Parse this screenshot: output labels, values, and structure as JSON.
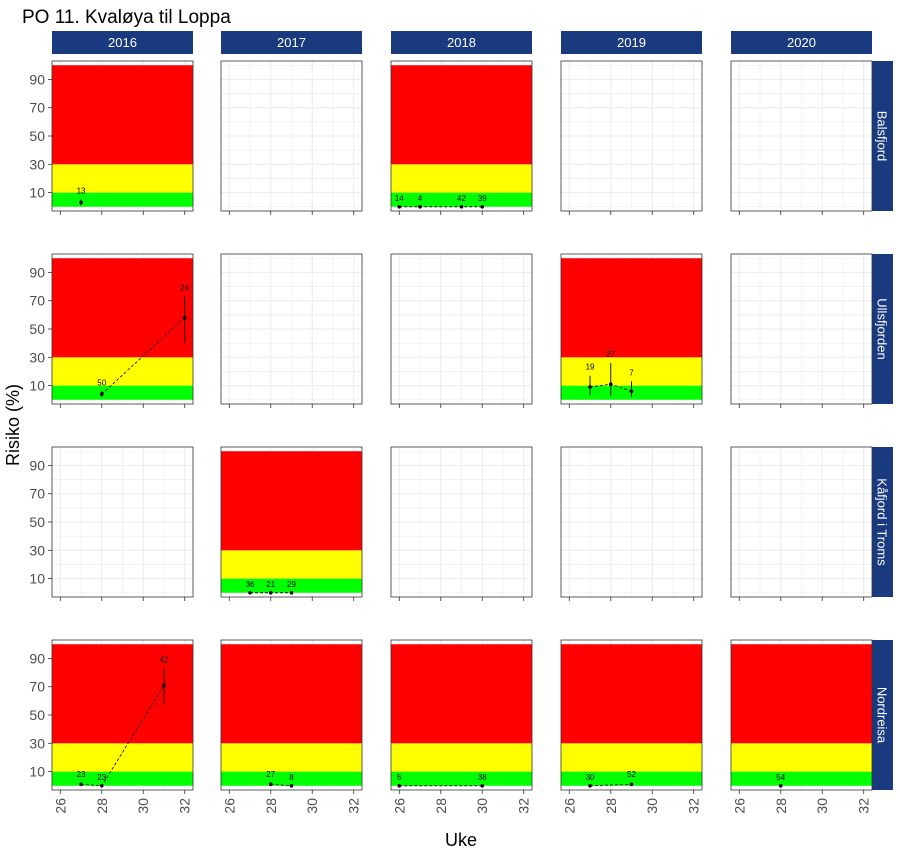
{
  "chart_data": {
    "type": "faceted-risk-line",
    "title": "PO 11. Kvaløya til Loppa",
    "xlabel": "Uke",
    "ylabel": "Risiko (%)",
    "years": [
      "2016",
      "2017",
      "2018",
      "2019",
      "2020"
    ],
    "locations": [
      "Balsfjord",
      "Ullsfjorden",
      "Kåfjord i Troms",
      "Nordreisa"
    ],
    "xlim": [
      25.6,
      32.4
    ],
    "ylim": [
      -3,
      103
    ],
    "x_ticks": [
      26,
      28,
      30,
      32
    ],
    "y_ticks": [
      10,
      30,
      50,
      70,
      90
    ],
    "risk_bands": [
      {
        "name": "green",
        "from": 0,
        "to": 10,
        "color": "#00ff00"
      },
      {
        "name": "yellow",
        "from": 10,
        "to": 30,
        "color": "#ffff00"
      },
      {
        "name": "red",
        "from": 30,
        "to": 100,
        "color": "#ff0000"
      }
    ],
    "colors": {
      "strip": "#1a3a7f",
      "strip_text": "#ffffff",
      "grid": "#ebebeb",
      "axis_text": "#4d4d4d"
    },
    "panels": [
      {
        "year": "2016",
        "location": "Balsfjord",
        "bands": true,
        "points": [
          {
            "week": 27,
            "risk": 3,
            "lo": 1,
            "hi": 5,
            "n": "13"
          }
        ]
      },
      {
        "year": "2018",
        "location": "Balsfjord",
        "bands": true,
        "points": [
          {
            "week": 26,
            "risk": 0,
            "lo": 0,
            "hi": 0,
            "n": "14"
          },
          {
            "week": 27,
            "risk": 0,
            "lo": 0,
            "hi": 0,
            "n": "4"
          },
          {
            "week": 29,
            "risk": 0,
            "lo": 0,
            "hi": 0,
            "n": "42"
          },
          {
            "week": 30,
            "risk": 0,
            "lo": 0,
            "hi": 0,
            "n": "39"
          }
        ]
      },
      {
        "year": "2016",
        "location": "Ullsfjorden",
        "bands": true,
        "points": [
          {
            "week": 28,
            "risk": 4,
            "lo": 2,
            "hi": 6,
            "n": "50"
          },
          {
            "week": 32,
            "risk": 58,
            "lo": 40,
            "hi": 73,
            "n": "24"
          }
        ]
      },
      {
        "year": "2019",
        "location": "Ullsfjorden",
        "bands": true,
        "points": [
          {
            "week": 27,
            "risk": 9,
            "lo": 3,
            "hi": 17,
            "n": "19"
          },
          {
            "week": 28,
            "risk": 11,
            "lo": 3,
            "hi": 26,
            "n": "27"
          },
          {
            "week": 29,
            "risk": 6,
            "lo": 2,
            "hi": 13,
            "n": "7"
          }
        ]
      },
      {
        "year": "2017",
        "location": "Kåfjord i Troms",
        "bands": true,
        "points": [
          {
            "week": 27,
            "risk": 0,
            "lo": 0,
            "hi": 0,
            "n": "36"
          },
          {
            "week": 28,
            "risk": 0,
            "lo": 0,
            "hi": 0,
            "n": "21"
          },
          {
            "week": 29,
            "risk": 0,
            "lo": 0,
            "hi": 0,
            "n": "29"
          }
        ]
      },
      {
        "year": "2016",
        "location": "Nordreisa",
        "bands": true,
        "points": [
          {
            "week": 27,
            "risk": 1,
            "lo": 0,
            "hi": 2,
            "n": "23"
          },
          {
            "week": 28,
            "risk": 0,
            "lo": 0,
            "hi": 0,
            "n": "23"
          },
          {
            "week": 31,
            "risk": 71,
            "lo": 57,
            "hi": 83,
            "n": "42"
          }
        ]
      },
      {
        "year": "2017",
        "location": "Nordreisa",
        "bands": true,
        "points": [
          {
            "week": 28,
            "risk": 1,
            "lo": 0,
            "hi": 2,
            "n": "27"
          },
          {
            "week": 29,
            "risk": 0,
            "lo": 0,
            "hi": 0,
            "n": "8"
          }
        ]
      },
      {
        "year": "2018",
        "location": "Nordreisa",
        "bands": true,
        "points": [
          {
            "week": 26,
            "risk": 0,
            "lo": 0,
            "hi": 0,
            "n": "5"
          },
          {
            "week": 30,
            "risk": 0,
            "lo": 0,
            "hi": 0,
            "n": "38"
          }
        ]
      },
      {
        "year": "2019",
        "location": "Nordreisa",
        "bands": true,
        "points": [
          {
            "week": 27,
            "risk": 0,
            "lo": 0,
            "hi": 0,
            "n": "30"
          },
          {
            "week": 29,
            "risk": 1,
            "lo": 0,
            "hi": 2,
            "n": "52"
          }
        ]
      },
      {
        "year": "2020",
        "location": "Nordreisa",
        "bands": true,
        "points": [
          {
            "week": 28,
            "risk": 0,
            "lo": 0,
            "hi": 0,
            "n": "54"
          }
        ]
      }
    ]
  }
}
